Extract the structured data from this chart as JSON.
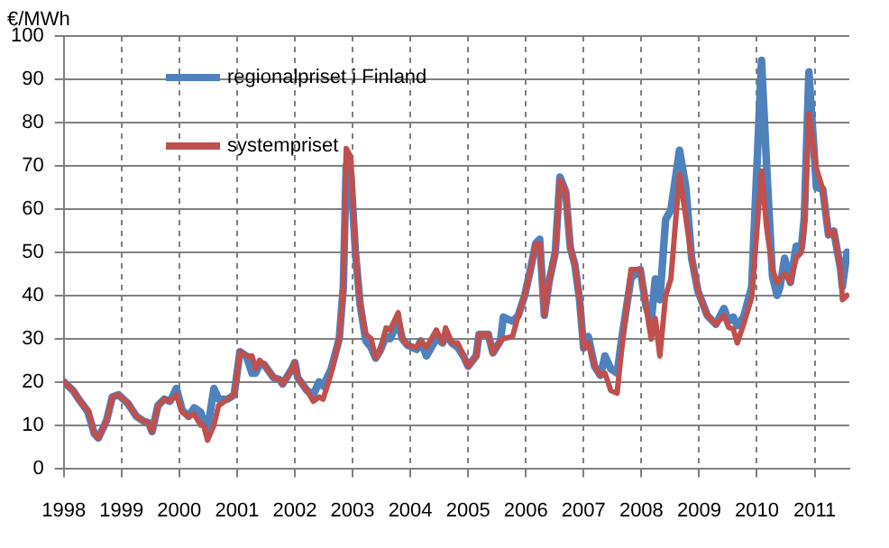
{
  "chart_data": {
    "type": "line",
    "ylabel": "€/MWh",
    "x": [
      1998,
      1998.16,
      1998.26,
      1998.37,
      1998.42,
      1998.53,
      1998.6,
      1998.74,
      1998.84,
      1998.95,
      1999.11,
      1999.26,
      1999.37,
      1999.47,
      1999.53,
      1999.63,
      1999.74,
      1999.84,
      1999.95,
      2000.05,
      2000.16,
      2000.26,
      2000.37,
      2000.42,
      2000.49,
      2000.6,
      2000.68,
      2000.84,
      2000.95,
      2001,
      2001.05,
      2001.16,
      2001.26,
      2001.32,
      2001.39,
      2001.47,
      2001.63,
      2001.74,
      2001.79,
      2001.95,
      2002,
      2002.05,
      2002.21,
      2002.32,
      2002.42,
      2002.49,
      2002.63,
      2002.77,
      2002.84,
      2002.89,
      2002.97,
      2003.05,
      2003.13,
      2003.23,
      2003.32,
      2003.4,
      2003.47,
      2003.58,
      2003.65,
      2003.79,
      2003.86,
      2003.95,
      2004.11,
      2004.18,
      2004.28,
      2004.45,
      2004.56,
      2004.61,
      2004.72,
      2004.82,
      2004.93,
      2005,
      2005.14,
      2005.19,
      2005.35,
      2005.43,
      2005.56,
      2005.61,
      2005.77,
      2005.87,
      2005.98,
      2006.08,
      2006.17,
      2006.24,
      2006.32,
      2006.4,
      2006.51,
      2006.59,
      2006.69,
      2006.77,
      2006.85,
      2006.93,
      2007,
      2007.08,
      2007.19,
      2007.29,
      2007.37,
      2007.47,
      2007.58,
      2007.66,
      2007.82,
      2007.98,
      2008.08,
      2008.17,
      2008.24,
      2008.32,
      2008.42,
      2008.51,
      2008.66,
      2008.77,
      2008.87,
      2008.98,
      2009.14,
      2009.29,
      2009.43,
      2009.51,
      2009.59,
      2009.66,
      2009.77,
      2009.91,
      2010.08,
      2010.17,
      2010.27,
      2010.35,
      2010.4,
      2010.48,
      2010.58,
      2010.68,
      2010.77,
      2010.82,
      2010.9,
      2011.03,
      2011.14,
      2011.24,
      2011.33,
      2011.45,
      2011.48,
      2011.56
    ],
    "series": [
      {
        "name": "regionalpriset i Finland",
        "color": "#4f81bd",
        "values": [
          20,
          18,
          16,
          14,
          13,
          8,
          7,
          11,
          16.5,
          17,
          15,
          12,
          11,
          10.5,
          8.5,
          14.5,
          16,
          15.5,
          18.5,
          13.5,
          12,
          14,
          13,
          11,
          9,
          18.5,
          16,
          16,
          17,
          22,
          27,
          26,
          22,
          22,
          24,
          24,
          21,
          20.5,
          19.5,
          23,
          24.5,
          21,
          18,
          17,
          20,
          19,
          23,
          30,
          42,
          70,
          68,
          50,
          38,
          29.5,
          28,
          25.5,
          27,
          30.5,
          30,
          34,
          30,
          28.5,
          27.5,
          29.5,
          26,
          30,
          29,
          31,
          29,
          28,
          25.7,
          23.6,
          26,
          31,
          31,
          26.7,
          29.5,
          35,
          34,
          35.4,
          40,
          46,
          52,
          53,
          35.4,
          43,
          50,
          67.4,
          64,
          51,
          47,
          39,
          27.8,
          30.5,
          23.6,
          21.5,
          26,
          23,
          22,
          30,
          44,
          46,
          37.5,
          34,
          43.8,
          39,
          57.6,
          59.7,
          73.6,
          65,
          48.6,
          41,
          35.4,
          33.3,
          37,
          34,
          35,
          33,
          35,
          42,
          94.4,
          69.4,
          44.4,
          40,
          42,
          48.6,
          43,
          51.4,
          51,
          58,
          91.7,
          65,
          64.6,
          54,
          54.9,
          46,
          42,
          50
        ]
      },
      {
        "name": "systempriset",
        "color": "#c0504d",
        "values": [
          20,
          18,
          16,
          14,
          13.5,
          8,
          7,
          11,
          16.5,
          17,
          15,
          12,
          11,
          10.5,
          8.5,
          14.5,
          16,
          15.5,
          17,
          13,
          12,
          12.5,
          10,
          10,
          6.5,
          10,
          14.5,
          16,
          17,
          22,
          27,
          26,
          26,
          23,
          25,
          24,
          21,
          20.5,
          19.5,
          23,
          24.5,
          21,
          18,
          15.5,
          16.5,
          16,
          22,
          30,
          42,
          74,
          72,
          50,
          38,
          31,
          30,
          25.5,
          27,
          32.5,
          32,
          36,
          30,
          28.5,
          28,
          29.5,
          28,
          32,
          29,
          32.5,
          29,
          29,
          25.7,
          23.6,
          26,
          31,
          31,
          26.7,
          29.5,
          30,
          30.5,
          35.4,
          40,
          46,
          52,
          52,
          35.4,
          43,
          50,
          66.7,
          64,
          51,
          47,
          39,
          27.8,
          29,
          23.6,
          21.5,
          22,
          18,
          17.4,
          27.8,
          46,
          46,
          37.5,
          29.9,
          34.7,
          26,
          40,
          43.8,
          68,
          58,
          48.6,
          41,
          35.4,
          33.3,
          35.4,
          32.6,
          32.2,
          29,
          33.3,
          39.6,
          68.8,
          55.5,
          46,
          43,
          43.8,
          45,
          43,
          48.6,
          50,
          55.5,
          82,
          69.4,
          64.6,
          54,
          54.9,
          46,
          39,
          40
        ]
      }
    ],
    "xlim": [
      1998,
      2011.6
    ],
    "xticks": [
      1998,
      1999,
      2000,
      2001,
      2002,
      2003,
      2004,
      2005,
      2006,
      2007,
      2008,
      2009,
      2010,
      2011
    ],
    "ylim": [
      0,
      100
    ],
    "yticks": [
      0,
      10,
      20,
      30,
      40,
      50,
      60,
      70,
      80,
      90,
      100
    ],
    "grid": true,
    "legend": "top left",
    "marker": "none",
    "line_style": "solid"
  }
}
